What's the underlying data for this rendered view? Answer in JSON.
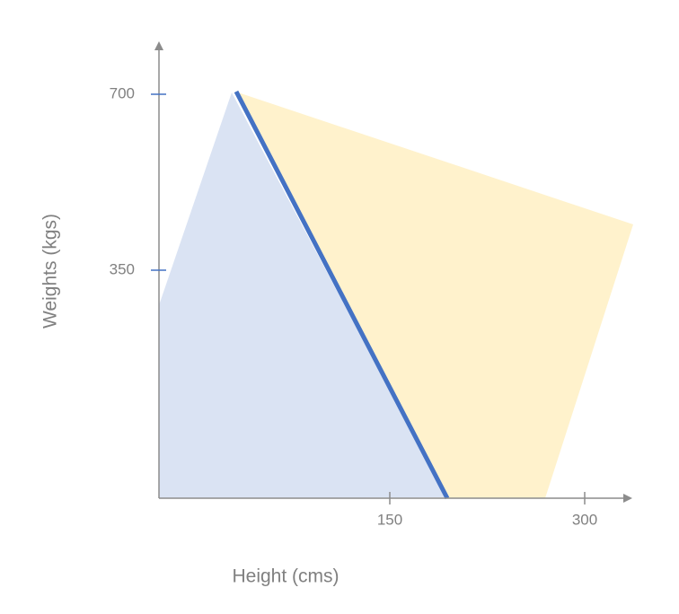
{
  "axes": {
    "y_label": "Weights (kgs)",
    "x_label": "Height (cms)",
    "y_ticks": [
      "700",
      "350"
    ],
    "x_ticks": [
      "150",
      "300"
    ]
  }
}
